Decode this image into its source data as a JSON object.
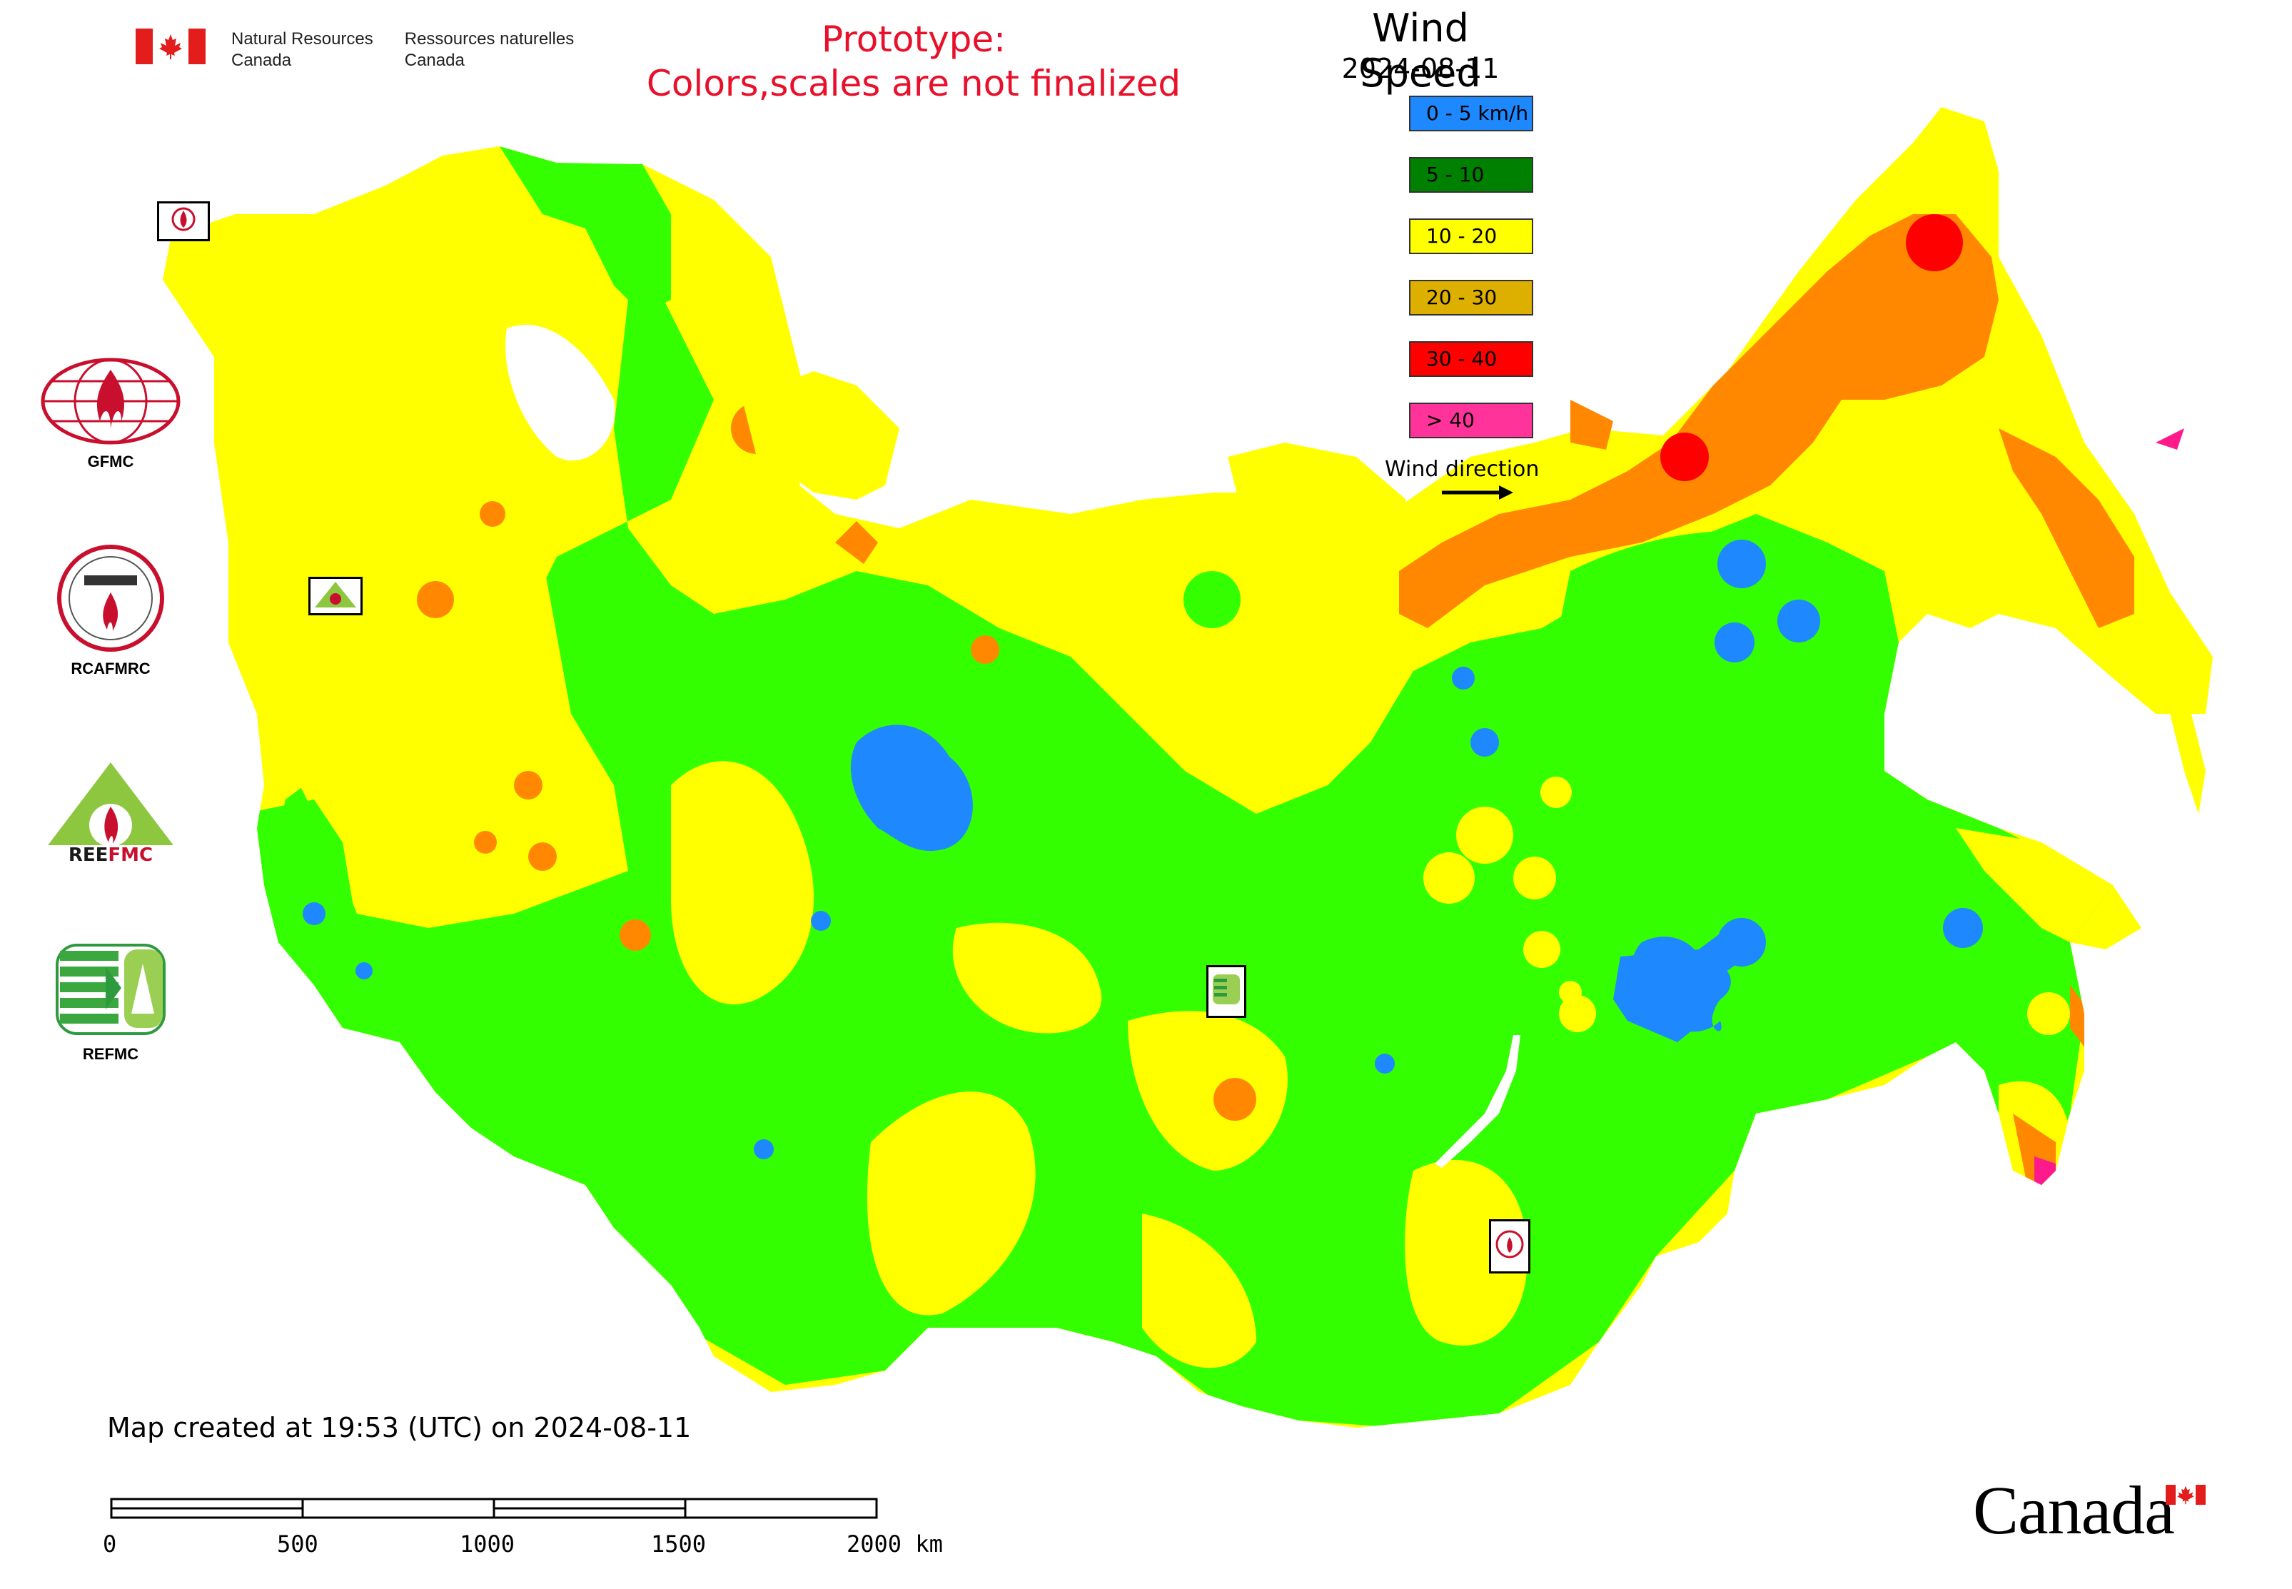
{
  "header": {
    "gov_en": [
      "Natural Resources",
      "Canada"
    ],
    "gov_fr": [
      "Ressources naturelles",
      "Canada"
    ],
    "prototype_line1": "Prototype:",
    "prototype_line2": "Colors,scales are not finalized"
  },
  "legend": {
    "title": "Wind Speed",
    "date": "2024-08-11",
    "items": [
      {
        "label": "0 - 5 km/h",
        "color": "#1e88ff"
      },
      {
        "label": "5 - 10",
        "color": "#008000"
      },
      {
        "label": "10 - 20",
        "color": "#ffff00"
      },
      {
        "label": "20 - 30",
        "color": "#ddb000"
      },
      {
        "label": "30 - 40",
        "color": "#ff0000"
      },
      {
        "label": "> 40",
        "color": "#ff3399"
      }
    ],
    "wind_direction_label": "Wind direction"
  },
  "map_colors": {
    "calm": "#1e88ff",
    "light": "#33ff00",
    "moderate": "#ffff00",
    "strong": "#ff8800",
    "very_strong": "#ff0000",
    "extreme": "#ff1a8c",
    "boundary": "#cc44cc"
  },
  "organizations": [
    {
      "name": "GFMC",
      "icon": "gfmc-globe-flame-logo"
    },
    {
      "name": "RCAFMRC",
      "icon": "rcafmrc-seal-logo"
    },
    {
      "name": "REEFMC",
      "icon": "reefmc-triangle-logo"
    },
    {
      "name": "REFMC",
      "icon": "refmc-stripes-logo"
    }
  ],
  "footer": {
    "created": "Map created at 19:53 (UTC) on 2024-08-11",
    "scale_ticks": [
      "0",
      "500",
      "1000",
      "1500",
      "2000 km"
    ],
    "canada_wordmark": "Canada"
  }
}
